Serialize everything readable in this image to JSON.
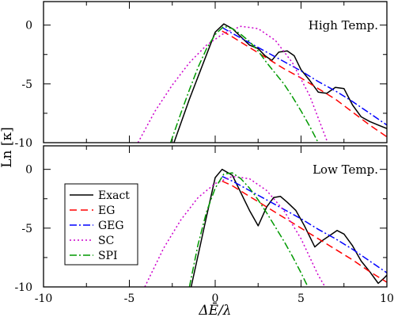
{
  "chart_data": [
    {
      "type": "line",
      "annotation": "High Temp.",
      "ylabel": "Ln [κ]",
      "xlim": [
        -10,
        10
      ],
      "ylim": [
        -10,
        2
      ],
      "yticks": [
        0,
        -5,
        -10
      ],
      "series": [
        {
          "name": "Exact",
          "color": "#000000",
          "dash": "",
          "x": [
            -2.4,
            -1.5,
            -0.5,
            0.0,
            0.5,
            1.0,
            1.5,
            2.0,
            2.5,
            2.9,
            3.3,
            3.7,
            4.2,
            4.6,
            5.0,
            5.5,
            6.0,
            6.5,
            7.0,
            7.5,
            8.0,
            8.5,
            9.0,
            9.5,
            10.0
          ],
          "y": [
            -10.0,
            -6.3,
            -2.5,
            -0.6,
            0.1,
            -0.3,
            -1.0,
            -1.7,
            -2.0,
            -2.6,
            -3.0,
            -2.3,
            -2.2,
            -2.6,
            -3.8,
            -4.7,
            -5.7,
            -5.8,
            -5.3,
            -5.4,
            -6.8,
            -7.8,
            -8.2,
            -8.5,
            -8.8
          ]
        },
        {
          "name": "EG",
          "color": "#ff0000",
          "dash": "9,5",
          "x": [
            0.4,
            1.0,
            2.0,
            3.0,
            4.0,
            5.0,
            6.0,
            7.0,
            8.0,
            9.0,
            10.0
          ],
          "y": [
            -0.5,
            -1.0,
            -1.9,
            -2.8,
            -3.7,
            -4.5,
            -5.4,
            -6.3,
            -7.4,
            -8.5,
            -9.5
          ]
        },
        {
          "name": "GEG",
          "color": "#0000ff",
          "dash": "9,3,2,3",
          "x": [
            0.4,
            1.0,
            2.0,
            3.0,
            4.0,
            5.0,
            6.0,
            7.0,
            8.0,
            9.0,
            10.0
          ],
          "y": [
            -0.2,
            -0.7,
            -1.5,
            -2.3,
            -3.1,
            -3.9,
            -4.8,
            -5.6,
            -6.5,
            -7.5,
            -8.5
          ]
        },
        {
          "name": "SC",
          "color": "#cc00cc",
          "dash": "2,3",
          "x": [
            -4.5,
            -3.5,
            -2.5,
            -1.5,
            -0.5,
            0.5,
            1.5,
            2.5,
            3.5,
            4.5,
            5.5,
            6.5
          ],
          "y": [
            -10.0,
            -7.3,
            -5.1,
            -3.2,
            -1.7,
            -0.7,
            -0.1,
            -0.3,
            -1.3,
            -3.2,
            -6.0,
            -9.8
          ]
        },
        {
          "name": "SPI",
          "color": "#009900",
          "dash": "9,3,2,3",
          "x": [
            -2.6,
            -2.0,
            -1.5,
            -1.0,
            -0.5,
            0.0,
            0.5,
            1.0,
            1.5,
            2.0,
            2.5,
            3.0,
            3.5,
            4.0,
            4.5,
            5.0,
            5.5,
            6.0
          ],
          "y": [
            -10.0,
            -7.5,
            -5.5,
            -3.6,
            -2.0,
            -0.8,
            -0.1,
            -0.3,
            -0.8,
            -1.4,
            -2.2,
            -3.2,
            -4.1,
            -5.0,
            -6.1,
            -7.3,
            -8.6,
            -10.0
          ]
        }
      ]
    },
    {
      "type": "line",
      "annotation": "Low Temp.",
      "xlabel": "ΔĒ/λ",
      "xlim": [
        -10,
        10
      ],
      "ylim": [
        -10,
        2
      ],
      "xticks": [
        -10,
        -5,
        0,
        5,
        10
      ],
      "yticks": [
        0,
        -5,
        -10
      ],
      "legend": "left",
      "series": [
        {
          "name": "Exact",
          "color": "#000000",
          "dash": "",
          "x": [
            -1.4,
            -0.5,
            0.0,
            0.4,
            1.0,
            1.5,
            2.0,
            2.5,
            3.0,
            3.4,
            3.8,
            4.2,
            4.7,
            5.2,
            5.8,
            6.2,
            6.6,
            7.1,
            7.5,
            8.0,
            8.5,
            9.0,
            9.5,
            9.8,
            10.0
          ],
          "y": [
            -10.0,
            -4.0,
            -0.7,
            0.0,
            -0.5,
            -2.0,
            -3.5,
            -4.8,
            -3.2,
            -2.4,
            -2.3,
            -2.8,
            -3.5,
            -4.8,
            -6.6,
            -6.1,
            -5.7,
            -5.2,
            -5.5,
            -6.5,
            -7.8,
            -8.7,
            -9.7,
            -9.3,
            -9.0
          ]
        },
        {
          "name": "EG",
          "color": "#ff0000",
          "dash": "9,5",
          "x": [
            0.4,
            1.0,
            2.0,
            3.0,
            4.0,
            5.0,
            6.0,
            7.0,
            8.0,
            9.0,
            10.0
          ],
          "y": [
            -1.0,
            -1.4,
            -2.3,
            -3.2,
            -4.1,
            -5.0,
            -5.9,
            -6.8,
            -7.7,
            -8.7,
            -9.6
          ]
        },
        {
          "name": "GEG",
          "color": "#0000ff",
          "dash": "9,3,2,3",
          "x": [
            0.4,
            1.0,
            2.0,
            3.0,
            4.0,
            5.0,
            6.0,
            7.0,
            8.0,
            9.0,
            10.0
          ],
          "y": [
            -0.6,
            -1.0,
            -1.8,
            -2.6,
            -3.4,
            -4.2,
            -5.1,
            -5.9,
            -6.8,
            -7.8,
            -8.8
          ]
        },
        {
          "name": "SC",
          "color": "#cc00cc",
          "dash": "2,3",
          "x": [
            -4.1,
            -3.0,
            -2.0,
            -1.0,
            0.0,
            1.0,
            2.0,
            3.0,
            4.0,
            5.0,
            6.0,
            6.4
          ],
          "y": [
            -10.0,
            -6.7,
            -4.3,
            -2.4,
            -1.2,
            -0.6,
            -0.8,
            -1.8,
            -3.5,
            -5.9,
            -9.0,
            -10.0
          ]
        },
        {
          "name": "SPI",
          "color": "#009900",
          "dash": "9,3,2,3",
          "x": [
            -1.5,
            -1.0,
            -0.5,
            0.0,
            0.5,
            1.0,
            1.5,
            2.0,
            2.5,
            3.0,
            3.5,
            4.0,
            4.5,
            5.0,
            5.4
          ],
          "y": [
            -10.0,
            -6.4,
            -3.6,
            -1.6,
            -0.4,
            -0.3,
            -0.8,
            -1.6,
            -2.6,
            -3.7,
            -4.9,
            -6.1,
            -7.4,
            -8.8,
            -10.0
          ]
        }
      ]
    }
  ]
}
